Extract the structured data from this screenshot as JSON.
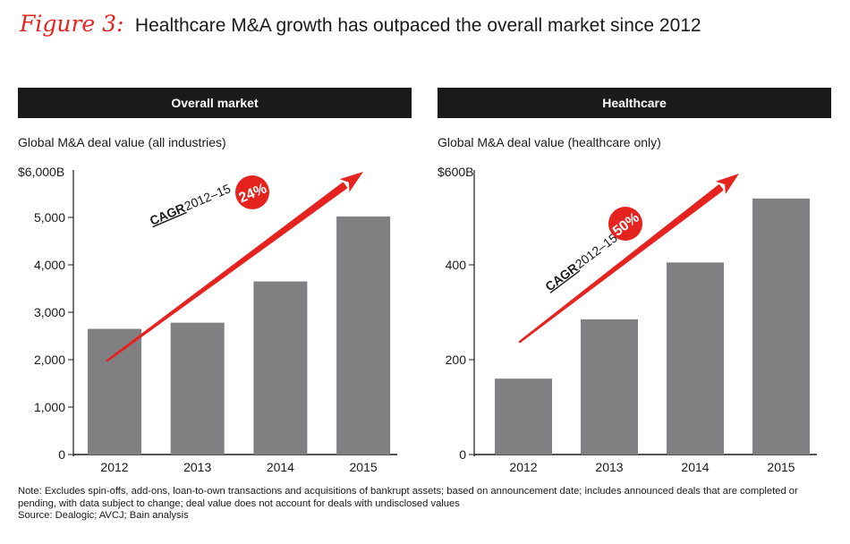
{
  "figure": {
    "label": "Figure 3:",
    "title": "Healthcare M&A growth has outpaced the overall market since 2012"
  },
  "panels": [
    {
      "header": "Overall market",
      "subtitle": "Global M&A deal value (all industries)",
      "unit_label": "$6,000B",
      "cagr": {
        "label": "CAGR",
        "period": "2012–15",
        "value": "24%"
      }
    },
    {
      "header": "Healthcare",
      "subtitle": "Global M&A deal value (healthcare only)",
      "unit_label": "$600B",
      "cagr": {
        "label": "CAGR",
        "period": "2012–15",
        "value": "50%"
      }
    }
  ],
  "chart_data": [
    {
      "type": "bar",
      "title": "Overall market",
      "ylabel": "Global M&A deal value (all industries)",
      "categories": [
        "2012",
        "2013",
        "2014",
        "2015"
      ],
      "values": [
        2650,
        2780,
        3650,
        5020
      ],
      "ylim": [
        0,
        6000
      ],
      "yticks": [
        0,
        1000,
        2000,
        3000,
        4000,
        5000
      ],
      "ytick_labels": [
        "0",
        "1,000",
        "2,000",
        "3,000",
        "4,000",
        "5,000"
      ],
      "bar_color": "#808083",
      "grid": false
    },
    {
      "type": "bar",
      "title": "Healthcare",
      "ylabel": "Global M&A deal value (healthcare only)",
      "categories": [
        "2012",
        "2013",
        "2014",
        "2015"
      ],
      "values": [
        160,
        285,
        405,
        540
      ],
      "ylim": [
        0,
        600
      ],
      "yticks": [
        0,
        200,
        400
      ],
      "ytick_labels": [
        "0",
        "200",
        "400"
      ],
      "bar_color": "#808083",
      "grid": false
    }
  ],
  "notes": {
    "note": "Note: Excludes spin-offs, add-ons, loan-to-own transactions and acquisitions of bankrupt assets; based on announcement date; includes announced deals that are completed or pending, with data subject to change; deal value does not account for deals with undisclosed values",
    "source": "Source: Dealogic; AVCJ; Bain analysis"
  },
  "colors": {
    "accent": "#e5231f",
    "header_bg": "#1a1a1a",
    "bar": "#808083",
    "text": "#1a1a1a"
  }
}
